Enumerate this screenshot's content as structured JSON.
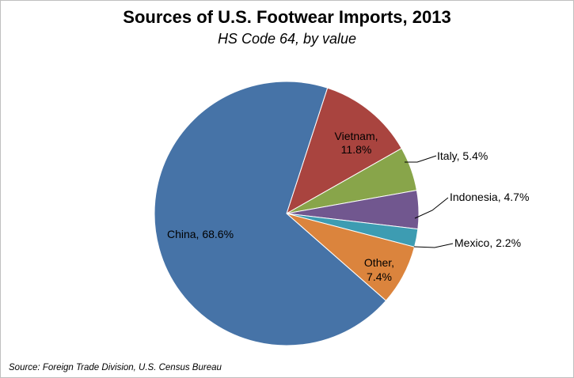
{
  "chart_data": {
    "type": "pie",
    "title": "Sources of U.S. Footwear Imports, 2013",
    "subtitle": "HS Code 64, by value",
    "categories": [
      "Vietnam",
      "Italy",
      "Indonesia",
      "Mexico",
      "Other",
      "China"
    ],
    "values": [
      11.8,
      5.4,
      4.7,
      2.2,
      7.4,
      68.6
    ],
    "labels": [
      [
        "Vietnam,",
        "11.8%"
      ],
      [
        "Italy,  5.4%"
      ],
      [
        "Indonesia,  4.7%"
      ],
      [
        "Mexico,  2.2%"
      ],
      [
        "Other,",
        "7.4%"
      ],
      [
        "China, 68.6%"
      ]
    ],
    "colors": [
      "#A9443F",
      "#88A54A",
      "#71578F",
      "#3D9CB2",
      "#DB843D",
      "#4673A7"
    ],
    "source": "Source:  Foreign Trade Division, U.S. Census Bureau"
  }
}
